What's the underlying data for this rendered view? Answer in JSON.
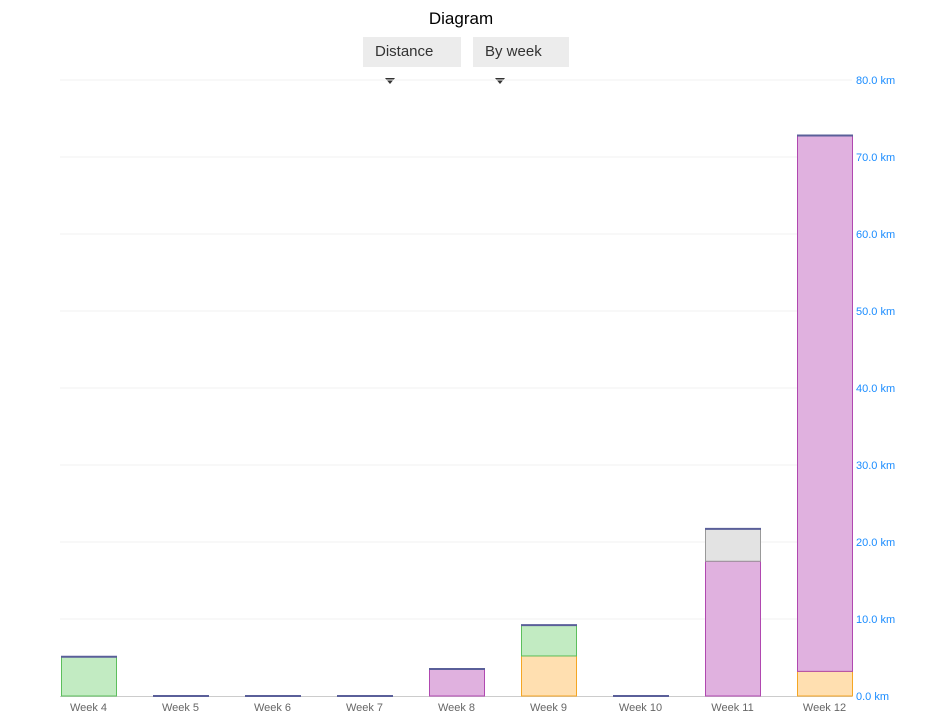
{
  "header": {
    "title": "Diagram",
    "metric_select": "Distance",
    "period_select": "By week"
  },
  "chart_data": {
    "type": "bar",
    "stacked": true,
    "title": "Diagram",
    "categories": [
      "Week 4",
      "Week 5",
      "Week 6",
      "Week 7",
      "Week 8",
      "Week 9",
      "Week 10",
      "Week 11",
      "Week 12"
    ],
    "series": [
      {
        "color": "#ffdfb0",
        "stroke": "#f5a623",
        "values": [
          0,
          0,
          0,
          0,
          0,
          5.2,
          0,
          0,
          3.2
        ]
      },
      {
        "color": "#c2ebc2",
        "stroke": "#5cbf5c",
        "values": [
          5.1,
          0,
          0,
          0,
          0,
          4.0,
          0,
          0,
          0
        ]
      },
      {
        "color": "#e0b1df",
        "stroke": "#b048b0",
        "values": [
          0,
          0,
          0,
          0,
          3.5,
          0,
          0,
          17.5,
          69.6
        ]
      },
      {
        "color": "#e3e3e3",
        "stroke": "#999999",
        "values": [
          0,
          0,
          0,
          0,
          0,
          0,
          0,
          4.2,
          0
        ]
      }
    ],
    "ylim": [
      0,
      80
    ],
    "yticks": [
      "0.0 km",
      "10.0 km",
      "20.0 km",
      "30.0 km",
      "40.0 km",
      "50.0 km",
      "60.0 km",
      "70.0 km",
      "80.0 km"
    ],
    "ytick_values": [
      0,
      10,
      20,
      30,
      40,
      50,
      60,
      70,
      80
    ],
    "y_axis_side": "right",
    "grid": true,
    "tick_color": "#1a8cff",
    "baseline_color": "#5a5f99"
  }
}
